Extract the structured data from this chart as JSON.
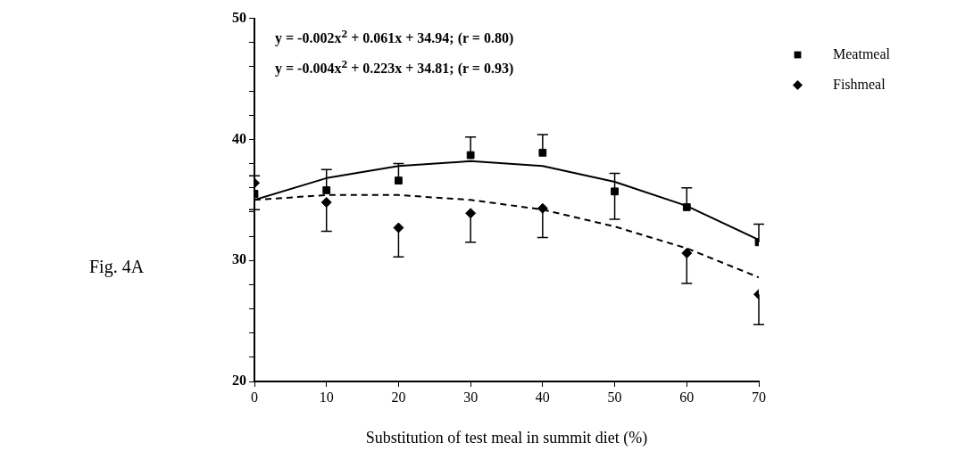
{
  "chart_data": {
    "type": "scatter",
    "xlabel": "Substitution of test meal in summit diet (%)",
    "xlim": [
      0,
      70
    ],
    "xticks": [
      0,
      10,
      20,
      30,
      40,
      50,
      60,
      70
    ],
    "ylim": [
      20,
      50
    ],
    "yticks": [
      20,
      {
        "value": 22,
        "label": null
      },
      {
        "value": 24,
        "label": null
      },
      {
        "value": 26,
        "label": null
      },
      {
        "value": 28,
        "label": null
      },
      30,
      {
        "value": 32,
        "label": null
      },
      {
        "value": 34,
        "label": null
      },
      {
        "value": 36,
        "label": null
      },
      {
        "value": 38,
        "label": null
      },
      40,
      {
        "value": 42,
        "label": null
      },
      {
        "value": 44,
        "label": null
      },
      {
        "value": 46,
        "label": null
      },
      {
        "value": 48,
        "label": null
      },
      50
    ],
    "grid": false,
    "legend": "top right",
    "annotations": [
      "y = -0.002x$^{2}$ + 0.061x + 34.94; (r = 0.80)",
      "y = -0.004x$^{2}$ + 0.223x + 34.81; (r = 0.93)",
      "Fig. 4A"
    ],
    "series": [
      {
        "name": "Meatmeal",
        "type": "scatter",
        "marker": "square",
        "color": "#000000",
        "x": [
          0,
          10,
          20,
          30,
          40,
          50,
          60,
          70
        ],
        "values": [
          35.5,
          35.8,
          36.6,
          38.7,
          38.9,
          35.7,
          34.4,
          31.5
        ],
        "errors": [
          [
            34.2,
            37.0
          ],
          [
            35.8,
            37.5
          ],
          [
            36.6,
            38.0
          ],
          [
            38.7,
            40.2
          ],
          [
            38.9,
            40.4
          ],
          [
            33.4,
            37.2
          ],
          [
            34.4,
            36.0
          ],
          [
            31.5,
            33.0
          ]
        ]
      },
      {
        "name": "Fishmeal",
        "type": "scatter",
        "marker": "diamond",
        "color": "#000000",
        "x": [
          0,
          10,
          20,
          30,
          40,
          50,
          60,
          70
        ],
        "values": [
          36.4,
          34.8,
          32.7,
          33.9,
          34.3,
          null,
          30.6,
          27.2
        ],
        "errors": [
          null,
          [
            32.4,
            34.8
          ],
          [
            30.3,
            32.7
          ],
          [
            31.5,
            33.9
          ],
          [
            31.9,
            34.3
          ],
          null,
          [
            28.1,
            30.6
          ],
          [
            24.7,
            27.2
          ]
        ]
      },
      {
        "type": "line",
        "marker": "none",
        "line_style": "solid",
        "color": "#000000",
        "x": [
          0,
          10,
          20,
          30,
          40,
          50,
          60,
          70
        ],
        "values": [
          35.0,
          36.8,
          37.8,
          38.2,
          37.8,
          36.5,
          34.5,
          31.7
        ]
      },
      {
        "type": "line",
        "marker": "none",
        "line_style": "dashed",
        "color": "#000000",
        "x": [
          0,
          10,
          20,
          30,
          40,
          50,
          60,
          70
        ],
        "values": [
          35.0,
          35.4,
          35.4,
          35.0,
          34.2,
          32.8,
          31.0,
          28.6
        ]
      }
    ]
  }
}
